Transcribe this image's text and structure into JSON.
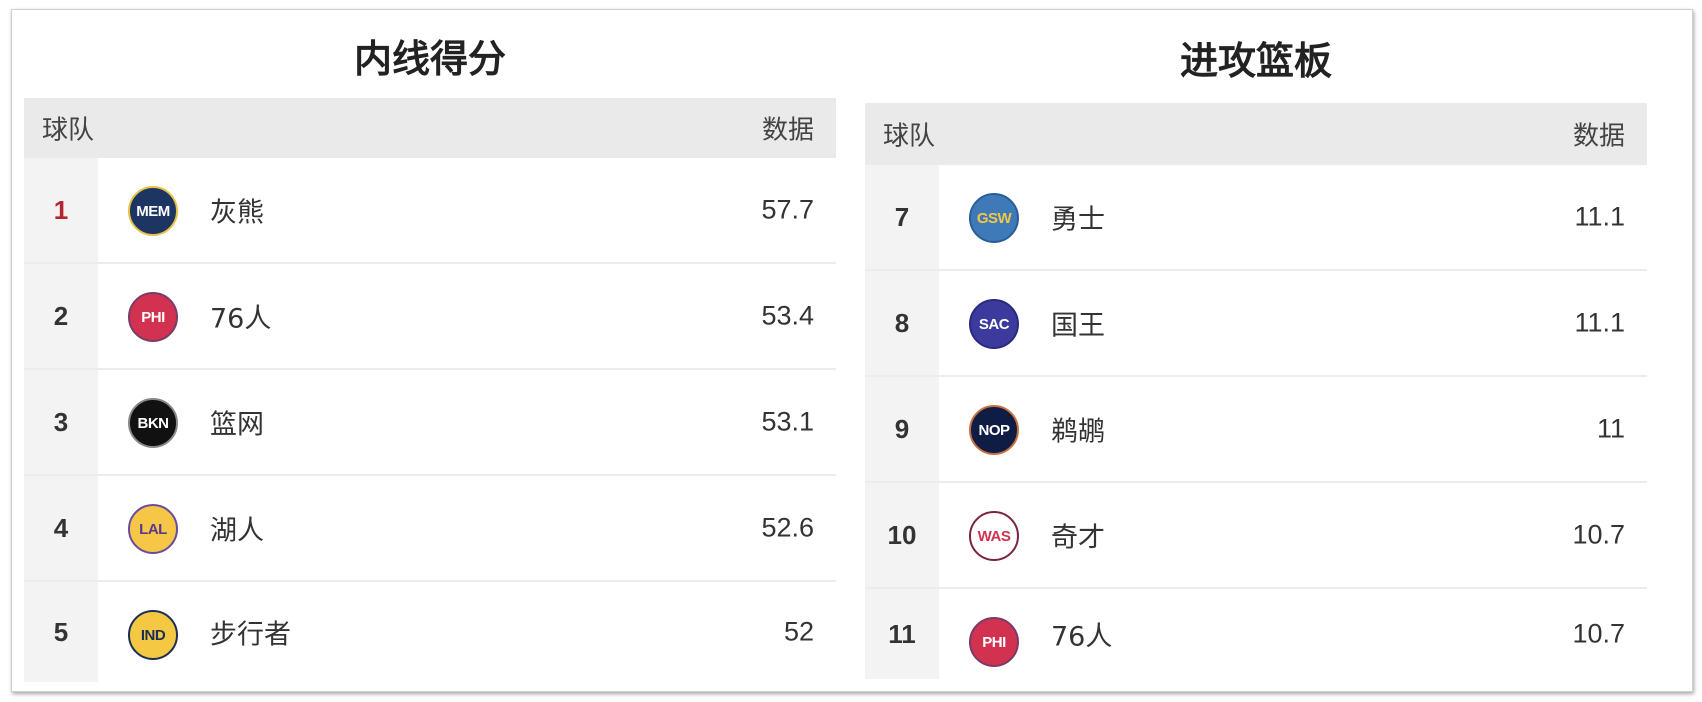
{
  "tables": [
    {
      "title": "内线得分",
      "header": {
        "team": "球队",
        "value": "数据"
      },
      "rows": [
        {
          "rank": "1",
          "abbr": "MEM",
          "team": "灰熊",
          "value": "57.7",
          "bg": "#1d3563",
          "fg": "#ffffff",
          "ring": "#e8c244"
        },
        {
          "rank": "2",
          "abbr": "PHI",
          "team": "76人",
          "value": "53.4",
          "bg": "#d2324f",
          "fg": "#ffffff",
          "ring": "#7a3b6a"
        },
        {
          "rank": "3",
          "abbr": "BKN",
          "team": "篮网",
          "value": "53.1",
          "bg": "#111111",
          "fg": "#ffffff",
          "ring": "#888888"
        },
        {
          "rank": "4",
          "abbr": "LAL",
          "team": "湖人",
          "value": "52.6",
          "bg": "#f6c646",
          "fg": "#5a3790",
          "ring": "#6b4ba0"
        },
        {
          "rank": "5",
          "abbr": "IND",
          "team": "步行者",
          "value": "52",
          "bg": "#f4c842",
          "fg": "#1b2f55",
          "ring": "#1b2f55"
        }
      ]
    },
    {
      "title": "进攻篮板",
      "header": {
        "team": "球队",
        "value": "数据"
      },
      "rows": [
        {
          "rank": "7",
          "abbr": "GSW",
          "team": "勇士",
          "value": "11.1",
          "bg": "#3f7ab8",
          "fg": "#f3c649",
          "ring": "#2a5e99"
        },
        {
          "rank": "8",
          "abbr": "SAC",
          "team": "国王",
          "value": "11.1",
          "bg": "#3c3a9c",
          "fg": "#ffffff",
          "ring": "#2c2a80"
        },
        {
          "rank": "9",
          "abbr": "NOP",
          "team": "鹈鹕",
          "value": "11",
          "bg": "#0f1d44",
          "fg": "#ffffff",
          "ring": "#c9713c"
        },
        {
          "rank": "10",
          "abbr": "WAS",
          "team": "奇才",
          "value": "10.7",
          "bg": "#ffffff",
          "fg": "#d2324f",
          "ring": "#7a2440"
        },
        {
          "rank": "11",
          "abbr": "PHI",
          "team": "76人",
          "value": "10.7",
          "bg": "#d2324f",
          "fg": "#ffffff",
          "ring": "#7a3b6a"
        }
      ]
    }
  ]
}
